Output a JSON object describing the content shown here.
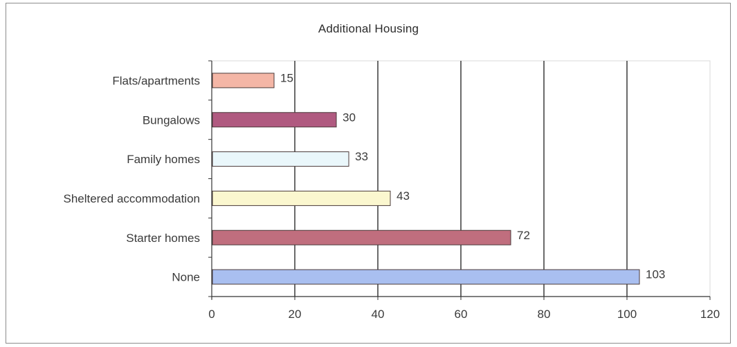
{
  "chart_data": {
    "type": "bar",
    "orientation": "horizontal",
    "title": "Additional Housing",
    "xlabel": "",
    "ylabel": "",
    "categories": [
      "Flats/apartments",
      "Bungalows",
      "Family homes",
      "Sheltered accommodation",
      "Starter homes",
      "None"
    ],
    "values": [
      15,
      30,
      33,
      43,
      72,
      103
    ],
    "colors": [
      "#f4b6a6",
      "#b05a80",
      "#eaf7fb",
      "#fbf7cf",
      "#c06e7e",
      "#a9bff0"
    ],
    "xlim": [
      0,
      120
    ],
    "xticks": [
      0,
      20,
      40,
      60,
      80,
      100,
      120
    ],
    "grid": true,
    "legend": "none",
    "data_labels": true
  }
}
